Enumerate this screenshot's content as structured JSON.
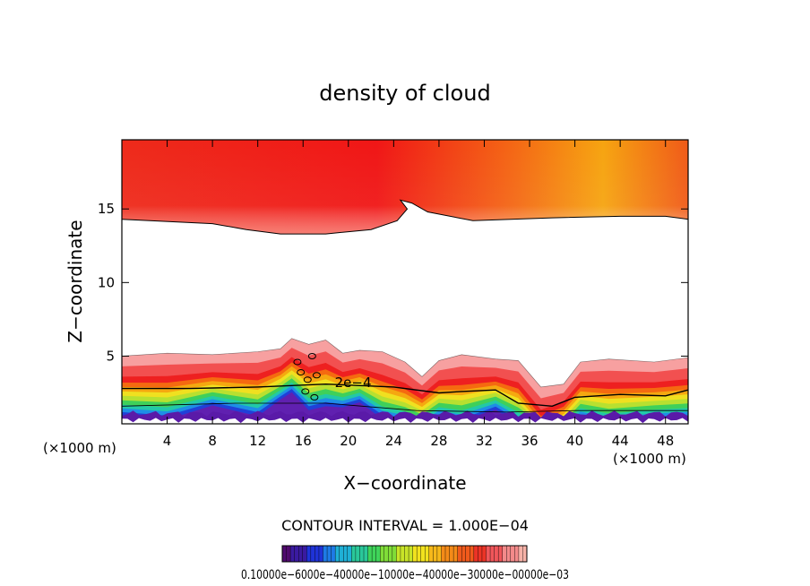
{
  "chart_data": {
    "type": "heatmap",
    "title": "density of cloud",
    "xlabel": "X−coordinate",
    "ylabel": "Z−coordinate",
    "x_unit_left": "(×1000 m)",
    "x_unit_right": "(×1000 m)",
    "xlim": [
      0,
      50
    ],
    "ylim": [
      0.4,
      19.7
    ],
    "xticks": [
      4,
      8,
      12,
      16,
      20,
      24,
      28,
      32,
      36,
      40,
      44,
      48
    ],
    "yticks": [
      5,
      10,
      15
    ],
    "grid": false,
    "contour_interval_text": "CONTOUR INTERVAL = 1.000E−04",
    "contour_label": "2e−4",
    "contour_label_pos": [
      18.8,
      2.9
    ],
    "colorbar_labels_text": "0.10000e−6000e−40000e−10000e−40000e−30000e−00000e−03",
    "colorbar_colors": [
      "#500a6e",
      "#3a1aa0",
      "#1f33d8",
      "#1e7ae6",
      "#1fb0d6",
      "#2ac89a",
      "#3fd45a",
      "#80dd38",
      "#c8e428",
      "#f2e21e",
      "#f6b81a",
      "#f48a18",
      "#f05a1c",
      "#ec3426",
      "#f0565a",
      "#f38a8a",
      "#f6b2a8"
    ],
    "upper_cloud": {
      "top": 19.7,
      "base": [
        [
          0,
          14.3
        ],
        [
          8,
          14.0
        ],
        [
          11,
          13.6
        ],
        [
          14,
          13.3
        ],
        [
          18,
          13.3
        ],
        [
          22,
          13.6
        ],
        [
          24.3,
          14.2
        ],
        [
          25.2,
          15.0
        ],
        [
          24.6,
          15.6
        ],
        [
          25.6,
          15.4
        ],
        [
          27,
          14.8
        ],
        [
          31,
          14.2
        ],
        [
          38,
          14.4
        ],
        [
          44,
          14.5
        ],
        [
          48,
          14.5
        ],
        [
          50,
          14.3
        ]
      ],
      "core_color": "#f01616",
      "edge_color": "#f7a07a",
      "east_top_color": "#f6a410"
    },
    "lower_cloud": {
      "bottom": 0.4,
      "top": [
        [
          0,
          5.0
        ],
        [
          4,
          5.2
        ],
        [
          8,
          5.1
        ],
        [
          12,
          5.3
        ],
        [
          14,
          5.5
        ],
        [
          15,
          6.2
        ],
        [
          16.5,
          5.8
        ],
        [
          18,
          6.1
        ],
        [
          19.5,
          5.2
        ],
        [
          21,
          5.4
        ],
        [
          23,
          5.3
        ],
        [
          25,
          4.6
        ],
        [
          26.5,
          3.6
        ],
        [
          28,
          4.7
        ],
        [
          30,
          5.1
        ],
        [
          33,
          4.8
        ],
        [
          35,
          4.7
        ],
        [
          37,
          2.9
        ],
        [
          39,
          3.1
        ],
        [
          40.5,
          4.6
        ],
        [
          43,
          4.8
        ],
        [
          47,
          4.6
        ],
        [
          50,
          4.9
        ]
      ],
      "contour_2e4": [
        [
          0,
          2.8
        ],
        [
          6,
          2.8
        ],
        [
          12,
          2.9
        ],
        [
          18,
          3.1
        ],
        [
          24,
          2.9
        ],
        [
          28,
          2.5
        ],
        [
          30,
          2.6
        ],
        [
          33,
          2.7
        ],
        [
          35,
          1.8
        ],
        [
          38,
          1.6
        ],
        [
          40,
          2.2
        ],
        [
          42,
          2.3
        ],
        [
          44,
          2.4
        ],
        [
          48,
          2.3
        ],
        [
          50,
          2.7
        ]
      ],
      "contour_low": [
        [
          0,
          1.6
        ],
        [
          10,
          1.8
        ],
        [
          18,
          1.8
        ],
        [
          26,
          1.3
        ],
        [
          34,
          1.2
        ],
        [
          40,
          1.3
        ],
        [
          50,
          1.3
        ]
      ],
      "bands": [
        {
          "z": 5.0,
          "color": "#f7a0a0"
        },
        {
          "z": 4.3,
          "color": "#f25050"
        },
        {
          "z": 3.6,
          "color": "#ee2020"
        },
        {
          "z": 3.2,
          "color": "#f56a10"
        },
        {
          "z": 2.9,
          "color": "#f5a810"
        },
        {
          "z": 2.6,
          "color": "#f0e020"
        },
        {
          "z": 2.3,
          "color": "#b8e030"
        },
        {
          "z": 2.0,
          "color": "#3fd05a"
        },
        {
          "z": 1.7,
          "color": "#22c8a8"
        },
        {
          "z": 1.45,
          "color": "#1e8ee6"
        },
        {
          "z": 1.2,
          "color": "#2040d8"
        },
        {
          "z": 0.95,
          "color": "#6020b0"
        }
      ]
    }
  }
}
